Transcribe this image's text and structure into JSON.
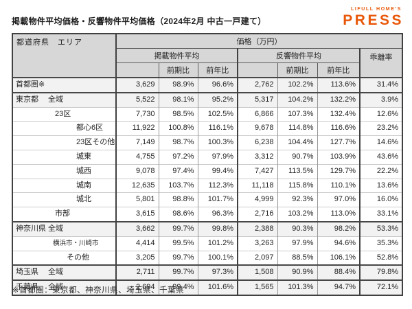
{
  "page": {
    "title": "掲載物件平均価格・反響物件平均価格（2024年2月 中古一戸建て）",
    "footnote": "※首都圏：東京都、神奈川県、埼玉県、千葉県",
    "logo": {
      "top": "LIFULL HOME'S",
      "bottom": "PRESS",
      "color": "#e85708"
    }
  },
  "chart_data": {
    "type": "table",
    "title": "掲載物件平均価格・反響物件平均価格（2024年2月 中古一戸建て）",
    "header": {
      "corner": "都道府県　エリア",
      "price_unit": "価格（万円）",
      "group_listed": "掲載物件平均",
      "group_response": "反響物件平均",
      "divergence": "乖離率",
      "sub_prev_period": "前期比",
      "sub_prev_year": "前年比"
    },
    "columns": [
      "エリア",
      "掲載物件平均",
      "掲載 前期比",
      "掲載 前年比",
      "反響物件平均",
      "反響 前期比",
      "反響 前年比",
      "乖離率"
    ],
    "rows": [
      {
        "pref": "首都圏※",
        "area": "",
        "level": 0,
        "small": false,
        "shaded": true,
        "section": true,
        "values": [
          "3,629",
          "98.9%",
          "96.6%",
          "2,762",
          "102.2%",
          "113.6%",
          "31.4%"
        ]
      },
      {
        "pref": "東京都",
        "area": "全域",
        "level": 0,
        "small": false,
        "shaded": true,
        "section": true,
        "values": [
          "5,522",
          "98.1%",
          "95.2%",
          "5,317",
          "104.2%",
          "132.2%",
          "3.9%"
        ]
      },
      {
        "pref": "",
        "area": "23区",
        "level": 1,
        "small": false,
        "shaded": false,
        "section": false,
        "values": [
          "7,730",
          "98.5%",
          "102.5%",
          "6,866",
          "107.3%",
          "132.4%",
          "12.6%"
        ]
      },
      {
        "pref": "",
        "area": "都心6区",
        "level": 3,
        "small": false,
        "shaded": false,
        "section": false,
        "values": [
          "11,922",
          "100.8%",
          "116.1%",
          "9,678",
          "114.8%",
          "116.6%",
          "23.2%"
        ]
      },
      {
        "pref": "",
        "area": "23区その他",
        "level": 3,
        "small": false,
        "shaded": false,
        "section": false,
        "values": [
          "7,149",
          "98.7%",
          "100.3%",
          "6,238",
          "104.4%",
          "127.7%",
          "14.6%"
        ]
      },
      {
        "pref": "",
        "area": "城東",
        "level": 3,
        "small": false,
        "shaded": false,
        "section": false,
        "values": [
          "4,755",
          "97.2%",
          "97.9%",
          "3,312",
          "90.7%",
          "103.9%",
          "43.6%"
        ]
      },
      {
        "pref": "",
        "area": "城西",
        "level": 3,
        "small": false,
        "shaded": false,
        "section": false,
        "values": [
          "9,078",
          "97.4%",
          "99.4%",
          "7,427",
          "113.5%",
          "129.7%",
          "22.2%"
        ]
      },
      {
        "pref": "",
        "area": "城南",
        "level": 3,
        "small": false,
        "shaded": false,
        "section": false,
        "values": [
          "12,635",
          "103.7%",
          "112.3%",
          "11,118",
          "115.8%",
          "110.1%",
          "13.6%"
        ]
      },
      {
        "pref": "",
        "area": "城北",
        "level": 3,
        "small": false,
        "shaded": false,
        "section": false,
        "values": [
          "5,801",
          "98.8%",
          "101.7%",
          "4,999",
          "92.3%",
          "97.0%",
          "16.0%"
        ]
      },
      {
        "pref": "",
        "area": "市部",
        "level": 1,
        "small": false,
        "shaded": false,
        "section": false,
        "values": [
          "3,615",
          "98.6%",
          "96.3%",
          "2,716",
          "103.2%",
          "113.0%",
          "33.1%"
        ]
      },
      {
        "pref": "神奈川県",
        "area": "全域",
        "level": 0,
        "small": false,
        "shaded": true,
        "section": true,
        "values": [
          "3,662",
          "99.7%",
          "99.8%",
          "2,388",
          "90.3%",
          "98.2%",
          "53.3%"
        ]
      },
      {
        "pref": "",
        "area": "横浜市・川崎市",
        "level": 1,
        "small": true,
        "shaded": false,
        "section": false,
        "values": [
          "4,414",
          "99.5%",
          "101.2%",
          "3,263",
          "97.9%",
          "94.6%",
          "35.3%"
        ]
      },
      {
        "pref": "",
        "area": "その他",
        "level": 2,
        "small": false,
        "shaded": false,
        "section": false,
        "values": [
          "3,205",
          "99.7%",
          "100.1%",
          "2,097",
          "88.5%",
          "106.1%",
          "52.8%"
        ]
      },
      {
        "pref": "埼玉県",
        "area": "全域",
        "level": 0,
        "small": false,
        "shaded": true,
        "section": true,
        "values": [
          "2,711",
          "99.7%",
          "97.3%",
          "1,508",
          "90.9%",
          "88.4%",
          "79.8%"
        ]
      },
      {
        "pref": "千葉県",
        "area": "全域",
        "level": 0,
        "small": false,
        "shaded": true,
        "section": true,
        "values": [
          "2,694",
          "99.4%",
          "101.6%",
          "1,565",
          "101.3%",
          "94.7%",
          "72.1%"
        ]
      }
    ],
    "footnote": "※首都圏：東京都、神奈川県、埼玉県、千葉県"
  }
}
